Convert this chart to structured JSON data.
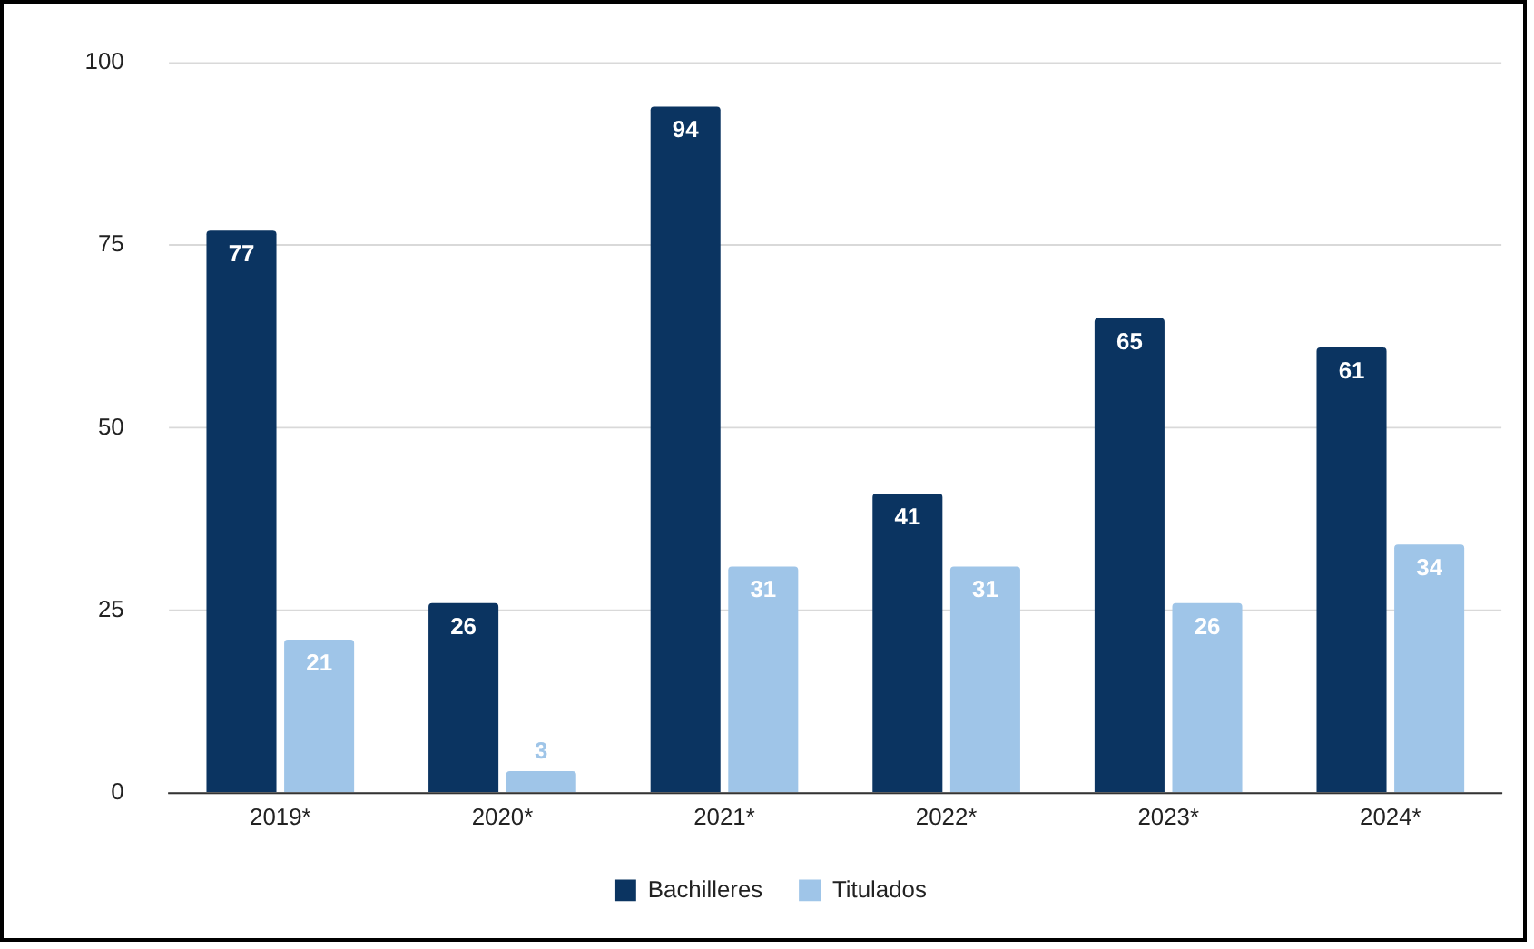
{
  "chart_data": {
    "type": "bar",
    "categories": [
      "2019*",
      "2020*",
      "2021*",
      "2022*",
      "2023*",
      "2024*"
    ],
    "series": [
      {
        "name": "Bachilleres",
        "color": "#0b3461",
        "values": [
          77,
          26,
          94,
          41,
          65,
          61
        ]
      },
      {
        "name": "Titulados",
        "color": "#9fc5e8",
        "values": [
          21,
          3,
          31,
          31,
          26,
          34
        ]
      }
    ],
    "ylim": [
      0,
      100
    ],
    "yticks": [
      0,
      25,
      50,
      75,
      100
    ],
    "grid": "y",
    "legend": "bottom",
    "data_labels": true
  }
}
